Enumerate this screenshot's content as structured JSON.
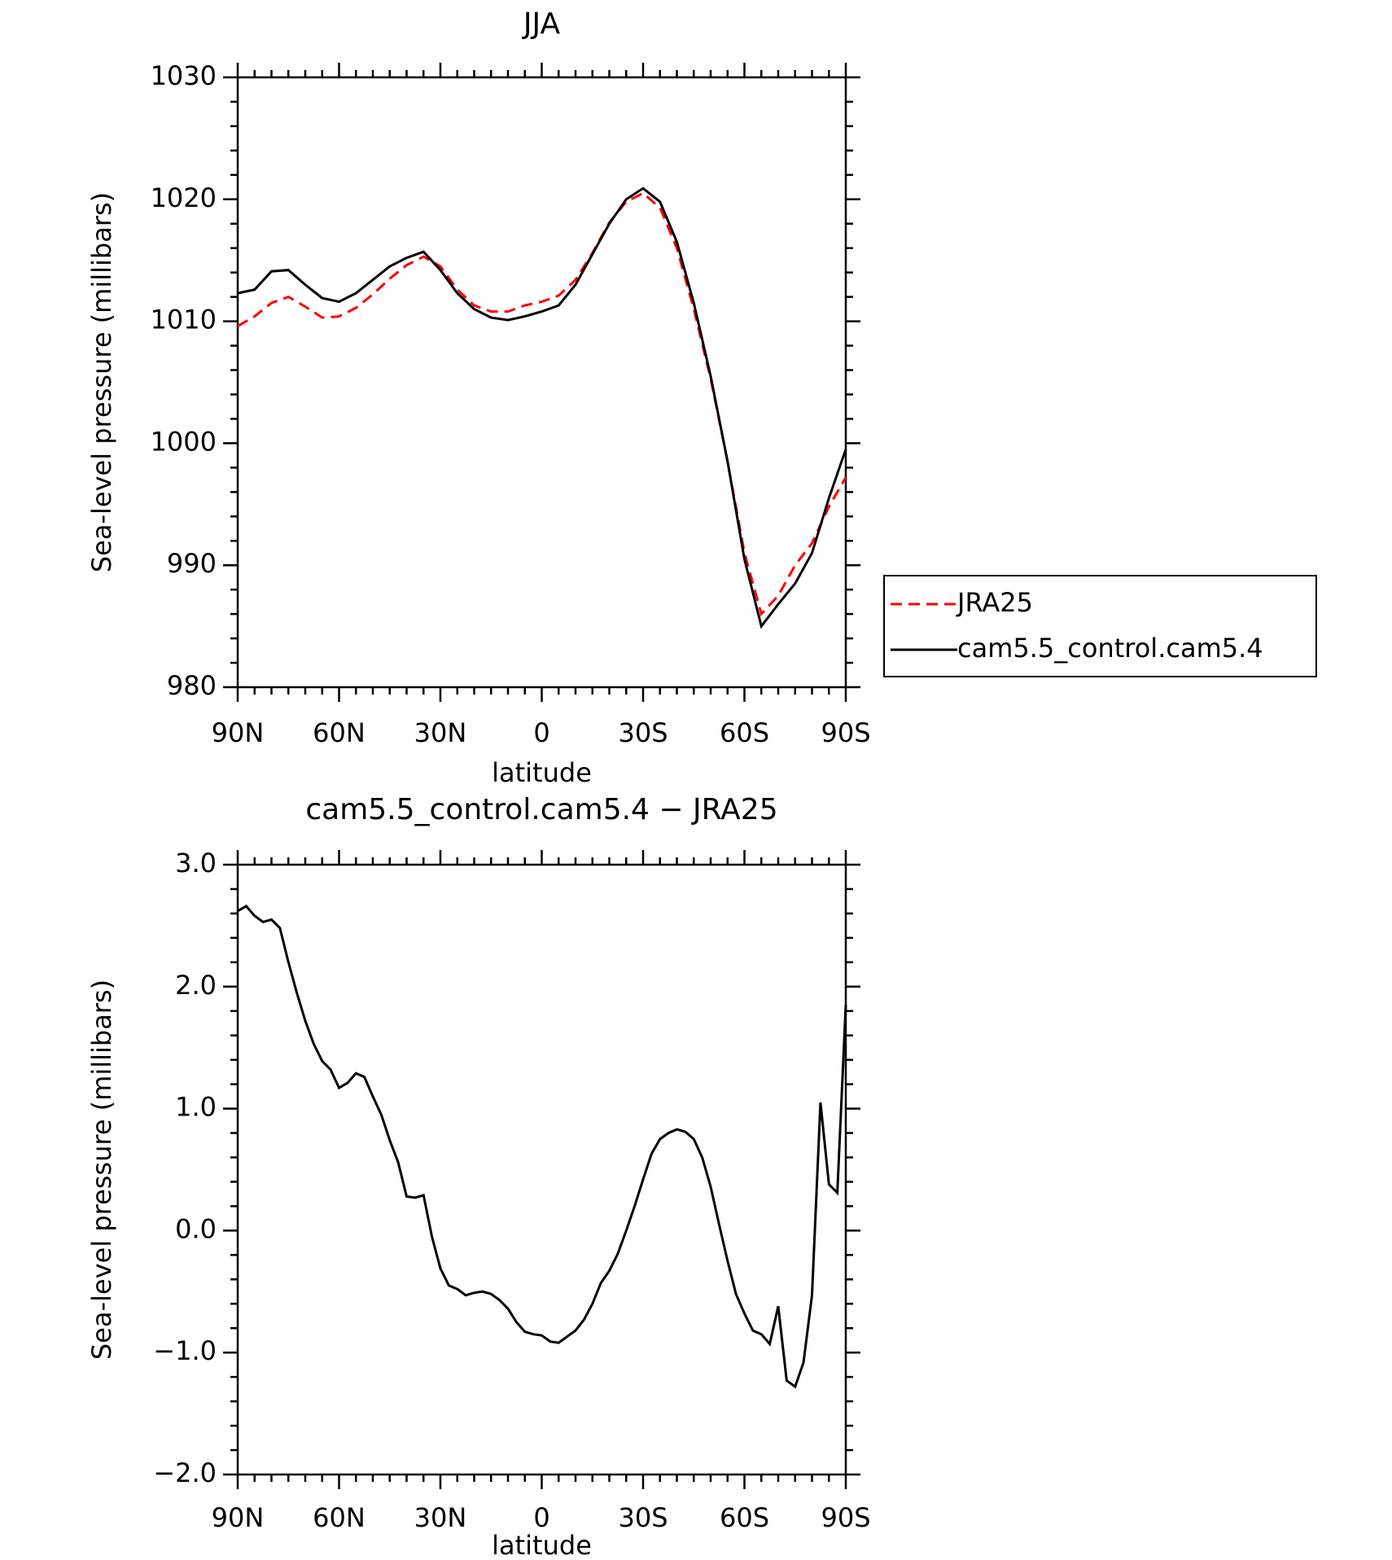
{
  "chart_data": [
    {
      "type": "line",
      "title": "JJA",
      "xlabel": "latitude",
      "ylabel": "Sea-level pressure (millibars)",
      "x": [
        90,
        85,
        80,
        75,
        70,
        65,
        60,
        55,
        50,
        45,
        40,
        35,
        30,
        25,
        20,
        15,
        10,
        5,
        0,
        -5,
        -10,
        -15,
        -20,
        -25,
        -30,
        -35,
        -40,
        -45,
        -50,
        -55,
        -60,
        -65,
        -70,
        -75,
        -80,
        -85,
        -90
      ],
      "xlim": [
        90,
        -90
      ],
      "xticks": [
        {
          "value": 90,
          "label": "90N"
        },
        {
          "value": 60,
          "label": "60N"
        },
        {
          "value": 30,
          "label": "30N"
        },
        0,
        {
          "value": -30,
          "label": "30S"
        },
        {
          "value": -60,
          "label": "60S"
        },
        {
          "value": -90,
          "label": "90S"
        }
      ],
      "ylim": [
        980,
        1030
      ],
      "yticks": [
        980,
        990,
        1000,
        1010,
        1020,
        1030
      ],
      "legend": "right",
      "series": [
        {
          "name": "JRA25",
          "color": "#ff0000",
          "dashed": true,
          "values": [
            1009.6,
            1010.4,
            1011.5,
            1012.0,
            1011.2,
            1010.3,
            1010.4,
            1011.1,
            1012.2,
            1013.5,
            1014.6,
            1015.3,
            1014.5,
            1012.6,
            1011.3,
            1010.8,
            1010.8,
            1011.3,
            1011.6,
            1012.1,
            1013.4,
            1015.6,
            1018.1,
            1019.8,
            1020.5,
            1019.3,
            1016.0,
            1011.0,
            1005.3,
            998.5,
            991.0,
            986.0,
            987.5,
            990.0,
            991.8,
            994.8,
            997.2
          ]
        },
        {
          "name": "cam5.5_control.cam5.4",
          "color": "#000000",
          "dashed": false,
          "values": [
            1012.3,
            1012.6,
            1014.1,
            1014.2,
            1013.0,
            1011.9,
            1011.6,
            1012.3,
            1013.4,
            1014.5,
            1015.2,
            1015.7,
            1014.2,
            1012.3,
            1011.0,
            1010.3,
            1010.1,
            1010.4,
            1010.8,
            1011.3,
            1013.0,
            1015.5,
            1018.0,
            1020.0,
            1020.9,
            1019.8,
            1016.5,
            1011.5,
            1005.5,
            998.5,
            990.5,
            985.0,
            986.8,
            988.5,
            991.0,
            995.5,
            999.5
          ]
        }
      ]
    },
    {
      "type": "line",
      "title": "cam5.5_control.cam5.4 − JRA25",
      "xlabel": "latitude",
      "ylabel": "Sea-level pressure (millibars)",
      "x": [
        90,
        87.5,
        85,
        82.5,
        80,
        77.5,
        75,
        72.5,
        70,
        67.5,
        65,
        62.5,
        60,
        57.5,
        55,
        52.5,
        50,
        47.5,
        45,
        42.5,
        40,
        37.5,
        35,
        32.5,
        30,
        27.5,
        25,
        22.5,
        20,
        17.5,
        15,
        12.5,
        10,
        7.5,
        5,
        2.5,
        0,
        -2.5,
        -5,
        -7.5,
        -10,
        -12.5,
        -15,
        -17.5,
        -20,
        -22.5,
        -25,
        -27.5,
        -30,
        -32.5,
        -35,
        -37.5,
        -40,
        -42.5,
        -45,
        -47.5,
        -50,
        -52.5,
        -55,
        -57.5,
        -60,
        -62.5,
        -65,
        -67.5,
        -70,
        -72.5,
        -75,
        -77.5,
        -80,
        -82.5,
        -85,
        -87.5,
        -90
      ],
      "xlim": [
        90,
        -90
      ],
      "xticks": [
        {
          "value": 90,
          "label": "90N"
        },
        {
          "value": 60,
          "label": "60N"
        },
        {
          "value": 30,
          "label": "30N"
        },
        0,
        {
          "value": -30,
          "label": "30S"
        },
        {
          "value": -60,
          "label": "60S"
        },
        {
          "value": -90,
          "label": "90S"
        }
      ],
      "ylim": [
        -2,
        3
      ],
      "yticks": [
        {
          "value": -2,
          "label": "−2.0"
        },
        {
          "value": -1,
          "label": "−1.0"
        },
        {
          "value": 0,
          "label": "0.0"
        },
        {
          "value": 1,
          "label": "1.0"
        },
        {
          "value": 2,
          "label": "2.0"
        },
        {
          "value": 3,
          "label": "3.0"
        }
      ],
      "color": "#000000",
      "values": [
        2.62,
        2.66,
        2.58,
        2.53,
        2.55,
        2.48,
        2.2,
        1.95,
        1.72,
        1.53,
        1.39,
        1.32,
        1.17,
        1.21,
        1.29,
        1.26,
        1.1,
        0.95,
        0.74,
        0.56,
        0.28,
        0.27,
        0.29,
        -0.05,
        -0.31,
        -0.45,
        -0.48,
        -0.53,
        -0.51,
        -0.5,
        -0.52,
        -0.57,
        -0.64,
        -0.75,
        -0.83,
        -0.85,
        -0.86,
        -0.91,
        -0.92,
        -0.87,
        -0.82,
        -0.73,
        -0.6,
        -0.43,
        -0.33,
        -0.19,
        0.0,
        0.2,
        0.42,
        0.63,
        0.75,
        0.8,
        0.83,
        0.81,
        0.75,
        0.6,
        0.36,
        0.05,
        -0.25,
        -0.52,
        -0.68,
        -0.82,
        -0.85,
        -0.93,
        -0.62,
        -1.23,
        -1.28,
        -1.08,
        -0.53,
        1.05,
        0.38,
        0.31,
        1.85
      ]
    }
  ]
}
